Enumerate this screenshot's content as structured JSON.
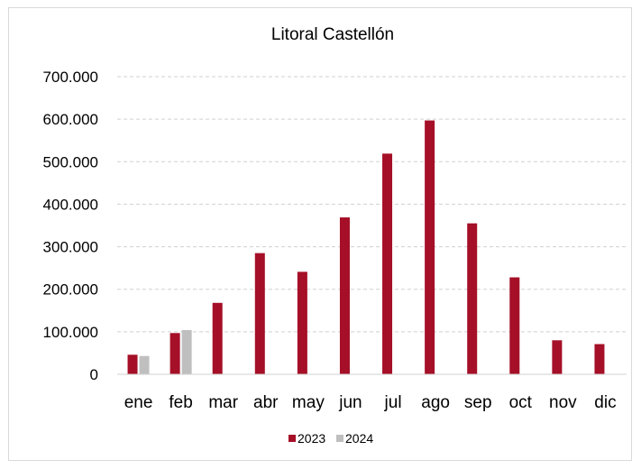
{
  "chart_data": {
    "type": "bar",
    "title": "Litoral Castellón",
    "xlabel": "",
    "ylabel": "",
    "categories": [
      "ene",
      "feb",
      "mar",
      "abr",
      "may",
      "jun",
      "jul",
      "ago",
      "sep",
      "oct",
      "nov",
      "dic"
    ],
    "series": [
      {
        "name": "2023",
        "color": "#A50F27",
        "values": [
          46000,
          97000,
          168000,
          285000,
          241000,
          369000,
          519000,
          597000,
          355000,
          228000,
          80000,
          71000
        ]
      },
      {
        "name": "2024",
        "color": "#BFBFBF",
        "values": [
          43000,
          104000,
          null,
          null,
          null,
          null,
          null,
          null,
          null,
          null,
          null,
          null
        ]
      }
    ],
    "ylim": [
      0,
      700000
    ],
    "yticks": [
      0,
      100000,
      200000,
      300000,
      400000,
      500000,
      600000,
      700000
    ],
    "ytick_labels": [
      "0",
      "100.000",
      "200.000",
      "300.000",
      "400.000",
      "500.000",
      "600.000",
      "700.000"
    ],
    "grid": true,
    "legend_position": "bottom"
  }
}
